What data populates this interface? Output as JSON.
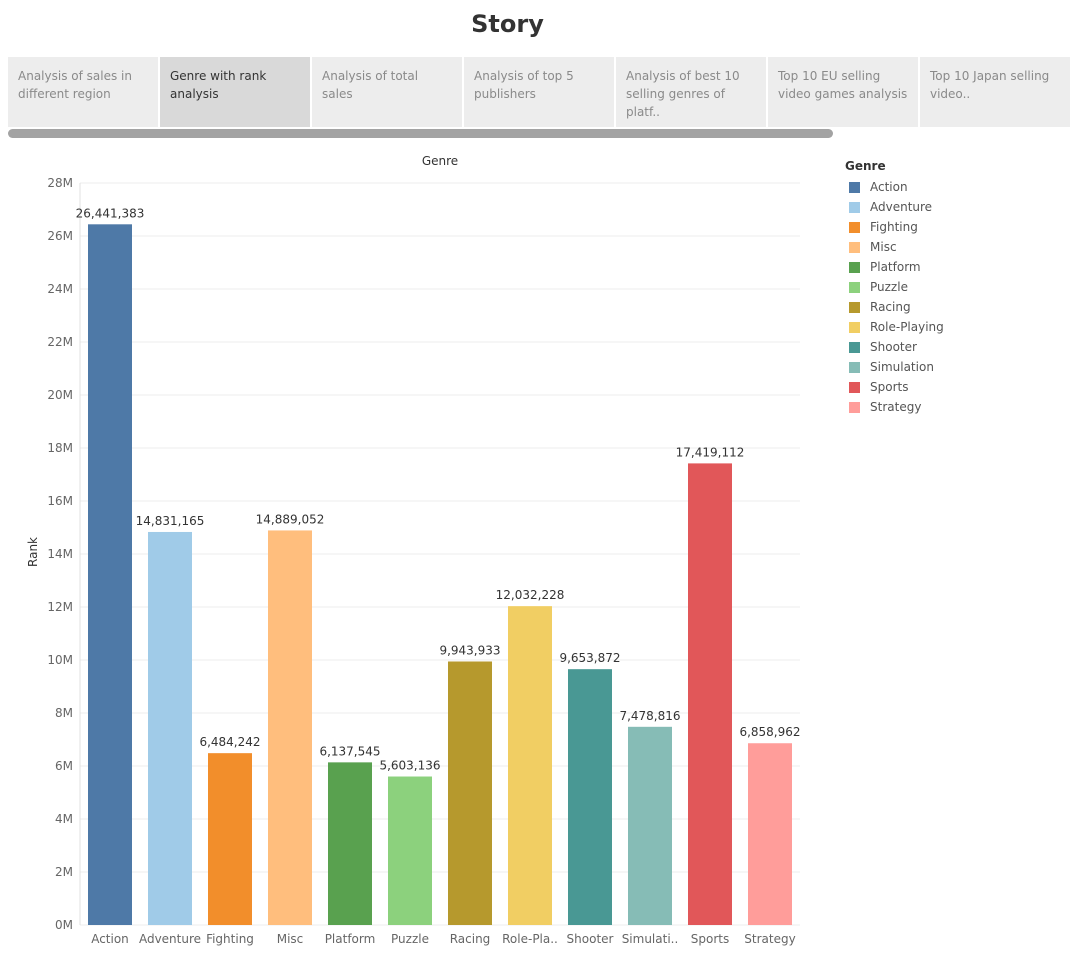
{
  "story": {
    "title": "Story",
    "tabs": [
      {
        "label": "Analysis of sales in different region",
        "active": false
      },
      {
        "label": "Genre with rank analysis",
        "active": true
      },
      {
        "label": "Analysis of total sales",
        "active": false
      },
      {
        "label": "Analysis of top 5 publishers",
        "active": false
      },
      {
        "label": "Analysis of best 10 selling genres of platf..",
        "active": false
      },
      {
        "label": "Top 10 EU selling video games analysis",
        "active": false
      },
      {
        "label": "Top 10 Japan selling video..",
        "active": false
      }
    ]
  },
  "legend": {
    "title": "Genre",
    "items": [
      {
        "label": "Action",
        "color": "#4e79a7"
      },
      {
        "label": "Adventure",
        "color": "#a0cbe8"
      },
      {
        "label": "Fighting",
        "color": "#f28e2b"
      },
      {
        "label": "Misc",
        "color": "#ffbe7d"
      },
      {
        "label": "Platform",
        "color": "#59a14f"
      },
      {
        "label": "Puzzle",
        "color": "#8cd17d"
      },
      {
        "label": "Racing",
        "color": "#b6992d"
      },
      {
        "label": "Role-Playing",
        "color": "#f1ce63"
      },
      {
        "label": "Shooter",
        "color": "#499894"
      },
      {
        "label": "Simulation",
        "color": "#86bcb6"
      },
      {
        "label": "Sports",
        "color": "#e15759"
      },
      {
        "label": "Strategy",
        "color": "#ff9d9a"
      }
    ]
  },
  "chart_data": {
    "type": "bar",
    "title": "Genre",
    "xlabel": "",
    "ylabel": "Rank",
    "ylim": [
      0,
      28000000
    ],
    "ytick_values": [
      0,
      2000000,
      4000000,
      6000000,
      8000000,
      10000000,
      12000000,
      14000000,
      16000000,
      18000000,
      20000000,
      22000000,
      24000000,
      26000000,
      28000000
    ],
    "yticks": [
      "0M",
      "2M",
      "4M",
      "6M",
      "8M",
      "10M",
      "12M",
      "14M",
      "16M",
      "18M",
      "20M",
      "22M",
      "24M",
      "26M",
      "28M"
    ],
    "categories": [
      "Action",
      "Adventure",
      "Fighting",
      "Misc",
      "Platform",
      "Puzzle",
      "Racing",
      "Role-Playing",
      "Shooter",
      "Simulation",
      "Sports",
      "Strategy"
    ],
    "tick_labels": [
      "Action",
      "Adventure",
      "Fighting",
      "Misc",
      "Platform",
      "Puzzle",
      "Racing",
      "Role-Pla..",
      "Shooter",
      "Simulati..",
      "Sports",
      "Strategy"
    ],
    "values": [
      26441383,
      14831165,
      6484242,
      14889052,
      6137545,
      5603136,
      9943933,
      12032228,
      9653872,
      7478816,
      17419112,
      6858962
    ],
    "data_labels": [
      "26,441,383",
      "14,831,165",
      "6,484,242",
      "14,889,052",
      "6,137,545",
      "5,603,136",
      "9,943,933",
      "12,032,228",
      "9,653,872",
      "7,478,816",
      "17,419,112",
      "6,858,962"
    ],
    "colors": [
      "#4e79a7",
      "#a0cbe8",
      "#f28e2b",
      "#ffbe7d",
      "#59a14f",
      "#8cd17d",
      "#b6992d",
      "#f1ce63",
      "#499894",
      "#86bcb6",
      "#e15759",
      "#ff9d9a"
    ],
    "grid": true,
    "legend_position": "right"
  }
}
